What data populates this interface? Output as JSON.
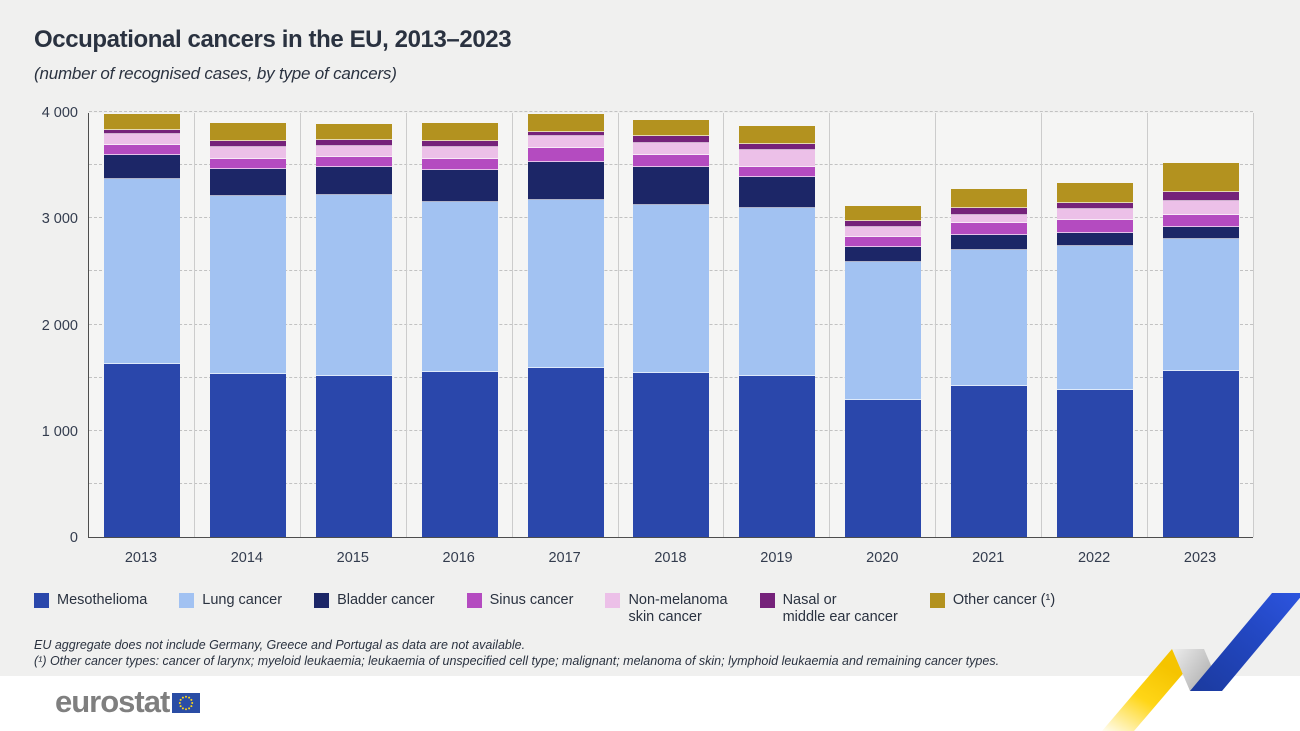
{
  "header": {
    "title": "Occupational cancers in the EU, 2013–2023",
    "subtitle": "(number of recognised cases, by type of cancers)"
  },
  "chart_data": {
    "type": "bar",
    "stacked": true,
    "title": "Occupational cancers in the EU, 2013–2023",
    "subtitle": "(number of recognised cases, by type of cancers)",
    "categories": [
      "2013",
      "2014",
      "2015",
      "2016",
      "2017",
      "2018",
      "2019",
      "2020",
      "2021",
      "2022",
      "2023"
    ],
    "series": [
      {
        "name": "Mesothelioma",
        "color": "#2a47ab",
        "legend_label": "Mesothelioma",
        "values": [
          1630,
          1530,
          1520,
          1550,
          1590,
          1540,
          1515,
          1285,
          1420,
          1385,
          1565
        ]
      },
      {
        "name": "Lung cancer",
        "color": "#a2c2f2",
        "legend_label": "Lung cancer",
        "values": [
          1735,
          1675,
          1700,
          1600,
          1580,
          1585,
          1585,
          1300,
          1280,
          1355,
          1240
        ]
      },
      {
        "name": "Bladder cancer",
        "color": "#1c2667",
        "legend_label": "Bladder cancer",
        "values": [
          235,
          260,
          265,
          300,
          355,
          355,
          285,
          140,
          140,
          120,
          115
        ]
      },
      {
        "name": "Sinus cancer",
        "color": "#b44bc0",
        "legend_label": "Sinus cancer",
        "values": [
          90,
          90,
          90,
          110,
          135,
          115,
          95,
          95,
          115,
          125,
          115
        ]
      },
      {
        "name": "Non-melanoma skin cancer",
        "color": "#ecc0e8",
        "legend_label": "Non-melanoma\nskin cancer",
        "values": [
          100,
          115,
          105,
          115,
          110,
          110,
          165,
          95,
          80,
          100,
          130
        ]
      },
      {
        "name": "Nasal or middle ear cancer",
        "color": "#75227a",
        "legend_label": "Nasal or\nmiddle ear cancer",
        "values": [
          45,
          55,
          55,
          55,
          40,
          65,
          55,
          60,
          60,
          55,
          80
        ]
      },
      {
        "name": "Other cancer (¹)",
        "color": "#b3921f",
        "legend_label": "Other cancer (¹)",
        "values": [
          145,
          170,
          155,
          165,
          170,
          155,
          165,
          140,
          180,
          190,
          275
        ]
      }
    ],
    "ylim": [
      0,
      4000
    ],
    "yticks": [
      {
        "value": 0,
        "label": "0"
      },
      {
        "value": 1000,
        "label": "1 000"
      },
      {
        "value": 2000,
        "label": "2 000"
      },
      {
        "value": 3000,
        "label": "3 000"
      },
      {
        "value": 4000,
        "label": "4 000"
      }
    ],
    "grid_step": 500,
    "grid": true,
    "legend_position": "bottom",
    "xlabel": "",
    "ylabel": ""
  },
  "footnotes": {
    "line1": "EU aggregate does not include Germany, Greece and Portugal as data are not available.",
    "line2": "(¹) Other cancer types: cancer of larynx; myeloid leukaemia; leukaemia of unspecified cell type; malignant; melanoma of skin; lymphoid leukaemia and remaining cancer types."
  },
  "footer": {
    "logo_text": "eurostat"
  },
  "colors": {
    "background": "#f0f0ef",
    "plot_background": "#f5f5f4",
    "axis": "#4d4d4d",
    "grid": "#c2c2c2",
    "ribbon_yellow": "#ffd617",
    "ribbon_blue": "#2348c4",
    "eu_flag_blue": "#2a4da5",
    "eu_star_yellow": "#ffd617"
  }
}
